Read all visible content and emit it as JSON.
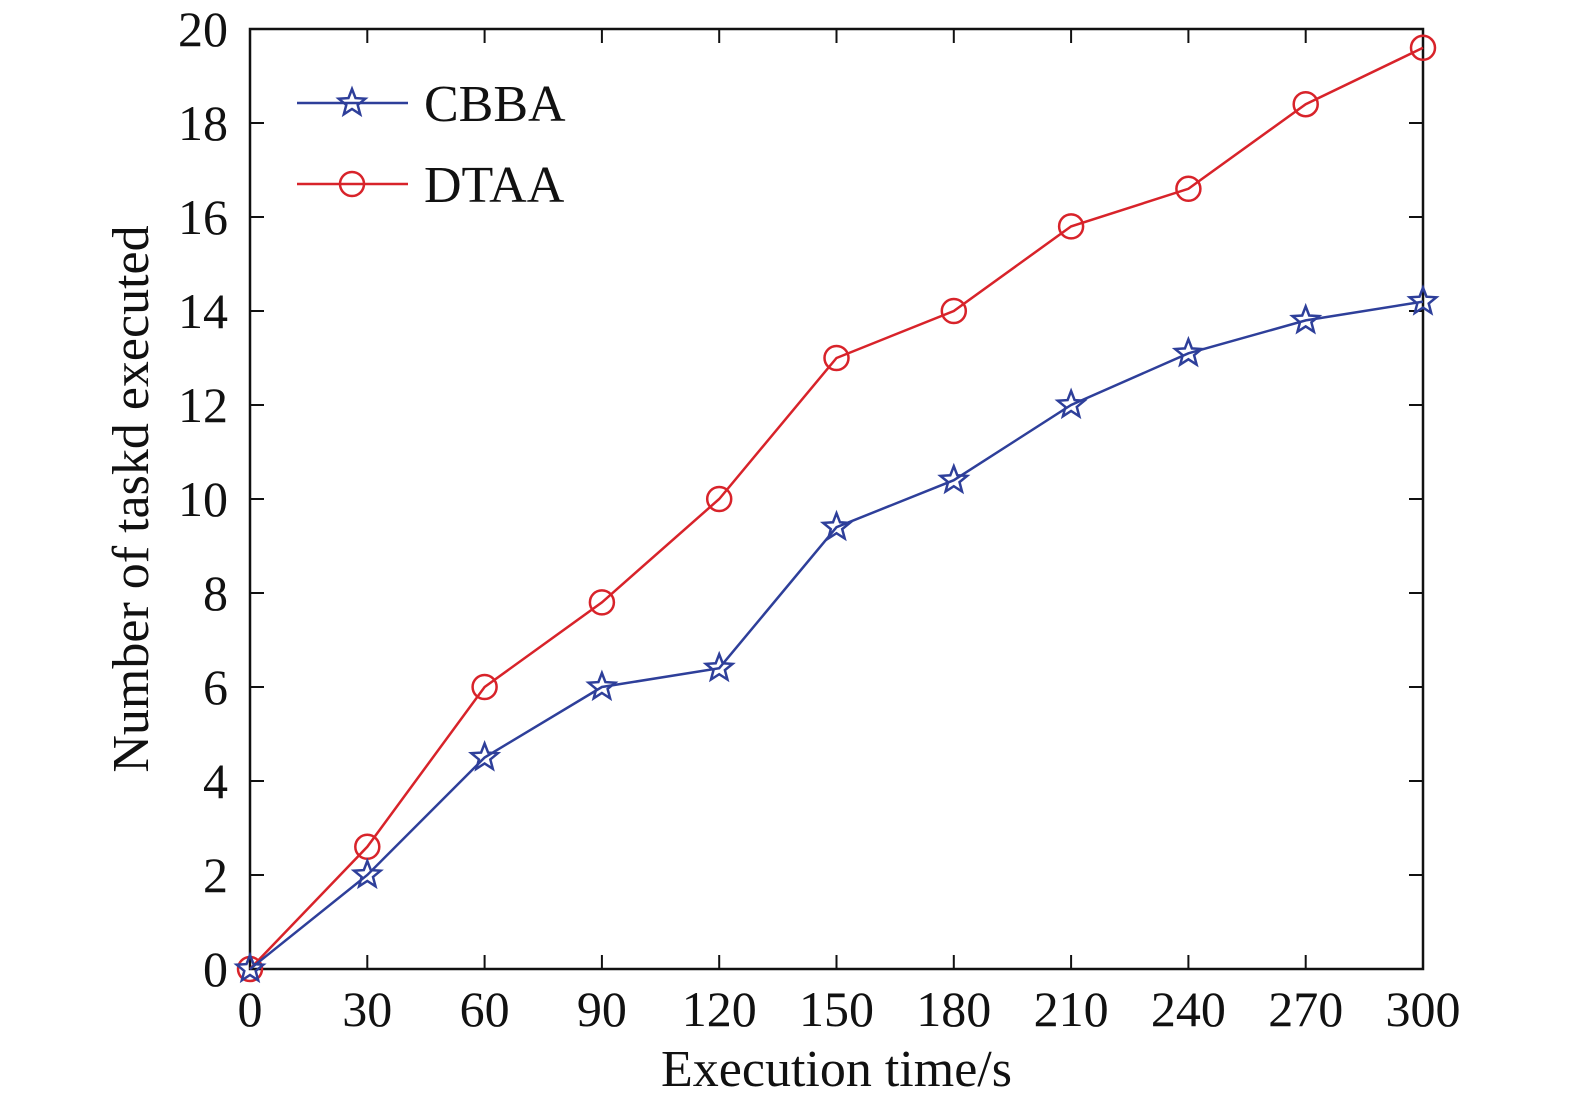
{
  "chart_data": {
    "type": "line",
    "xlabel": "Execution time/s",
    "ylabel": "Number of taskd executed",
    "xlim": [
      0,
      300
    ],
    "ylim": [
      0,
      20
    ],
    "x_ticks": [
      "0",
      "30",
      "60",
      "90",
      "120",
      "150",
      "180",
      "210",
      "240",
      "270",
      "300"
    ],
    "y_ticks": [
      "0",
      "2",
      "4",
      "6",
      "8",
      "10",
      "12",
      "14",
      "16",
      "18",
      "20"
    ],
    "x": [
      0,
      30,
      60,
      90,
      120,
      150,
      180,
      210,
      240,
      270,
      300
    ],
    "series": [
      {
        "name": "CBBA",
        "color": "#2e3f9a",
        "marker": "star",
        "values": [
          0,
          2.0,
          4.5,
          6.0,
          6.4,
          9.4,
          10.4,
          12.0,
          13.1,
          13.8,
          14.2
        ]
      },
      {
        "name": "DTAA",
        "color": "#d8232a",
        "marker": "circle",
        "values": [
          0,
          2.6,
          6.0,
          7.8,
          10.0,
          13.0,
          14.0,
          15.8,
          16.6,
          18.4,
          19.6
        ]
      }
    ],
    "grid": false,
    "legend_position": "top-left"
  }
}
